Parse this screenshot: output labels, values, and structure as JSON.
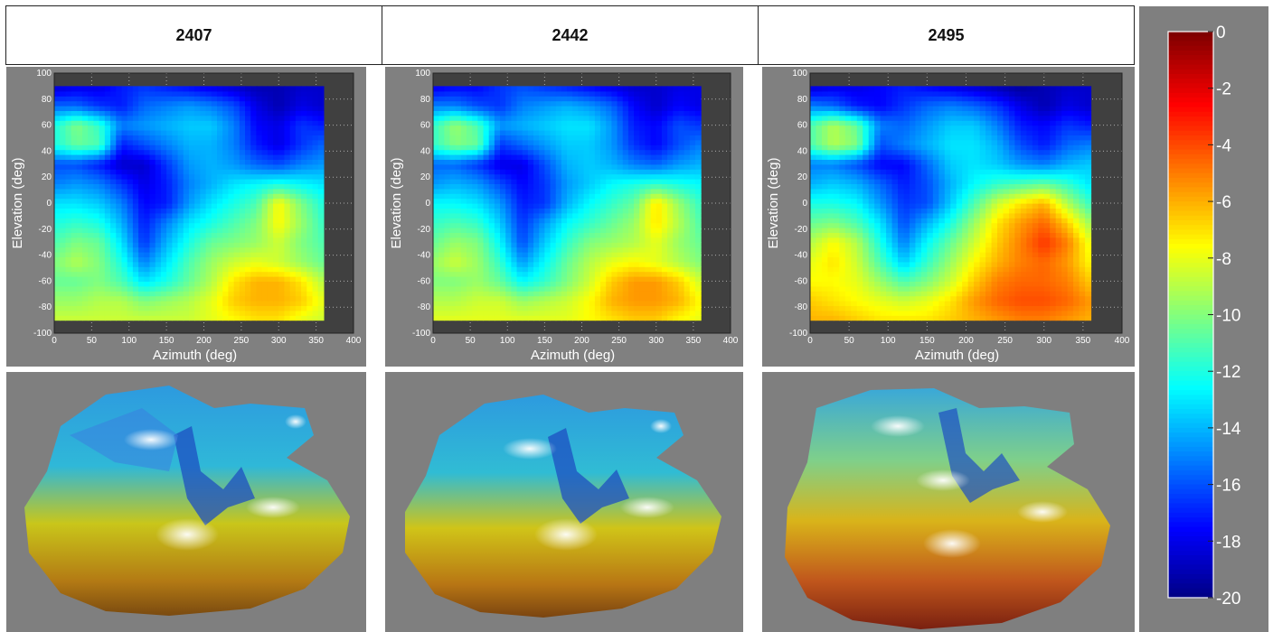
{
  "panels": [
    {
      "label": "2407"
    },
    {
      "label": "2442"
    },
    {
      "label": "2495"
    }
  ],
  "colors": {
    "panel_bg": "#808080",
    "axes_bg": "#404040",
    "scale": [
      "#00008f",
      "#0000ff",
      "#0080ff",
      "#00ffff",
      "#80ff80",
      "#ffff00",
      "#ff8000",
      "#ff0000",
      "#800000"
    ]
  },
  "chart_data": [
    {
      "type": "heatmap",
      "panel": "2407",
      "xlabel": "Azimuth (deg)",
      "ylabel": "Elevation (deg)",
      "xlim": [
        0,
        400
      ],
      "ylim": [
        -100,
        100
      ],
      "x_ticks": [
        0,
        50,
        100,
        150,
        200,
        250,
        300,
        350,
        400
      ],
      "y_ticks": [
        -100,
        -80,
        -60,
        -40,
        -20,
        0,
        20,
        40,
        60,
        80,
        100
      ],
      "x_range": [
        0,
        360
      ],
      "y_range": [
        -90,
        90
      ],
      "grid": true,
      "x": [
        0,
        30,
        60,
        90,
        120,
        150,
        180,
        210,
        240,
        270,
        300,
        330,
        360
      ],
      "y": [
        -90,
        -75,
        -60,
        -45,
        -30,
        -15,
        0,
        15,
        30,
        45,
        60,
        75,
        90
      ],
      "values": [
        [
          -8.5,
          -8.5,
          -8.5,
          -8.5,
          -8.5,
          -8.5,
          -8.5,
          -8.0,
          -7.5,
          -7.0,
          -7.0,
          -8.0,
          -8.5
        ],
        [
          -9.5,
          -9.5,
          -9.0,
          -9.0,
          -10.0,
          -9.5,
          -9.0,
          -8.0,
          -6.5,
          -6.0,
          -6.0,
          -6.5,
          -8.0
        ],
        [
          -10.5,
          -10.5,
          -10.0,
          -11.0,
          -13.0,
          -12.0,
          -10.5,
          -9.0,
          -7.0,
          -6.0,
          -6.0,
          -7.0,
          -9.0
        ],
        [
          -10.0,
          -9.0,
          -10.0,
          -12.0,
          -15.0,
          -13.0,
          -11.0,
          -9.5,
          -8.5,
          -8.0,
          -8.5,
          -9.5,
          -10.5
        ],
        [
          -11.0,
          -10.0,
          -10.5,
          -13.0,
          -16.5,
          -14.0,
          -12.0,
          -10.5,
          -10.0,
          -9.5,
          -8.5,
          -10.0,
          -11.0
        ],
        [
          -12.0,
          -11.5,
          -12.0,
          -14.0,
          -17.0,
          -15.0,
          -13.0,
          -12.0,
          -11.0,
          -10.0,
          -7.5,
          -9.5,
          -11.5
        ],
        [
          -13.0,
          -13.0,
          -13.5,
          -15.0,
          -17.5,
          -17.0,
          -14.5,
          -13.0,
          -12.0,
          -11.0,
          -7.5,
          -10.0,
          -12.0
        ],
        [
          -15.0,
          -14.5,
          -15.0,
          -16.5,
          -18.0,
          -17.0,
          -15.0,
          -14.0,
          -13.0,
          -12.5,
          -12.0,
          -12.5,
          -13.0
        ],
        [
          -16.0,
          -16.0,
          -17.0,
          -18.5,
          -18.5,
          -16.5,
          -14.5,
          -14.0,
          -14.5,
          -15.5,
          -16.0,
          -15.0,
          -14.5
        ],
        [
          -12.0,
          -10.5,
          -11.0,
          -17.0,
          -16.0,
          -15.0,
          -14.0,
          -14.0,
          -15.0,
          -17.0,
          -18.0,
          -16.5,
          -15.5
        ],
        [
          -12.0,
          -10.0,
          -11.5,
          -15.0,
          -14.5,
          -14.0,
          -13.5,
          -13.5,
          -15.0,
          -17.5,
          -18.0,
          -16.5,
          -17.0
        ],
        [
          -15.5,
          -15.5,
          -16.5,
          -17.0,
          -15.5,
          -15.0,
          -14.5,
          -15.0,
          -16.0,
          -18.0,
          -19.0,
          -18.0,
          -18.5
        ],
        [
          -18.5,
          -18.0,
          -18.0,
          -17.0,
          -16.5,
          -17.0,
          -17.5,
          -18.0,
          -18.5,
          -19.0,
          -19.0,
          -18.5,
          -18.5
        ]
      ]
    },
    {
      "type": "heatmap",
      "panel": "2442",
      "xlabel": "Azimuth (deg)",
      "ylabel": "Elevation (deg)",
      "xlim": [
        0,
        400
      ],
      "ylim": [
        -100,
        100
      ],
      "x_ticks": [
        0,
        50,
        100,
        150,
        200,
        250,
        300,
        350,
        400
      ],
      "y_ticks": [
        -100,
        -80,
        -60,
        -40,
        -20,
        0,
        20,
        40,
        60,
        80,
        100
      ],
      "x_range": [
        0,
        360
      ],
      "y_range": [
        -90,
        90
      ],
      "grid": true,
      "x": [
        0,
        30,
        60,
        90,
        120,
        150,
        180,
        210,
        240,
        270,
        300,
        330,
        360
      ],
      "y": [
        -90,
        -75,
        -60,
        -45,
        -30,
        -15,
        0,
        15,
        30,
        45,
        60,
        75,
        90
      ],
      "values": [
        [
          -8.0,
          -8.0,
          -8.0,
          -8.0,
          -8.0,
          -8.0,
          -8.0,
          -7.5,
          -7.0,
          -6.5,
          -6.5,
          -7.5,
          -8.0
        ],
        [
          -9.0,
          -9.0,
          -8.5,
          -8.5,
          -9.5,
          -9.0,
          -8.5,
          -7.5,
          -6.0,
          -5.5,
          -5.5,
          -6.0,
          -7.5
        ],
        [
          -10.0,
          -10.0,
          -9.5,
          -10.5,
          -12.5,
          -11.5,
          -10.0,
          -8.5,
          -6.5,
          -5.5,
          -5.5,
          -6.5,
          -8.5
        ],
        [
          -9.5,
          -8.5,
          -9.5,
          -11.5,
          -14.5,
          -12.5,
          -10.5,
          -9.0,
          -8.0,
          -7.5,
          -8.0,
          -9.0,
          -10.0
        ],
        [
          -10.5,
          -9.5,
          -10.0,
          -12.5,
          -16.0,
          -13.5,
          -11.5,
          -10.0,
          -9.5,
          -9.0,
          -8.0,
          -9.5,
          -10.5
        ],
        [
          -11.5,
          -11.0,
          -11.5,
          -13.5,
          -16.5,
          -14.5,
          -12.5,
          -11.5,
          -10.5,
          -9.5,
          -7.0,
          -9.0,
          -11.0
        ],
        [
          -12.5,
          -12.5,
          -13.0,
          -14.5,
          -17.0,
          -16.5,
          -14.0,
          -12.5,
          -11.5,
          -10.5,
          -7.0,
          -9.5,
          -11.5
        ],
        [
          -14.5,
          -14.0,
          -14.5,
          -16.0,
          -17.5,
          -16.5,
          -14.5,
          -13.5,
          -12.5,
          -12.0,
          -11.5,
          -12.0,
          -12.5
        ],
        [
          -15.5,
          -15.5,
          -16.5,
          -18.0,
          -18.0,
          -16.0,
          -14.0,
          -13.5,
          -14.0,
          -15.0,
          -15.5,
          -14.5,
          -14.0
        ],
        [
          -11.5,
          -10.0,
          -10.5,
          -16.5,
          -15.5,
          -14.5,
          -13.5,
          -13.5,
          -14.5,
          -16.5,
          -17.5,
          -16.0,
          -15.0
        ],
        [
          -11.5,
          -9.5,
          -11.0,
          -14.5,
          -14.0,
          -13.5,
          -13.0,
          -13.0,
          -14.5,
          -17.0,
          -17.5,
          -16.0,
          -16.5
        ],
        [
          -15.0,
          -15.0,
          -16.0,
          -16.5,
          -15.0,
          -14.5,
          -14.0,
          -14.5,
          -15.5,
          -17.5,
          -18.5,
          -17.5,
          -18.0
        ],
        [
          -18.0,
          -17.5,
          -17.5,
          -16.5,
          -16.0,
          -16.5,
          -17.0,
          -17.5,
          -18.0,
          -18.5,
          -18.5,
          -18.0,
          -18.0
        ]
      ]
    },
    {
      "type": "heatmap",
      "panel": "2495",
      "xlabel": "Azimuth (deg)",
      "ylabel": "Elevation (deg)",
      "xlim": [
        0,
        400
      ],
      "ylim": [
        -100,
        100
      ],
      "x_ticks": [
        0,
        50,
        100,
        150,
        200,
        250,
        300,
        350,
        400
      ],
      "y_ticks": [
        -100,
        -80,
        -60,
        -40,
        -20,
        0,
        20,
        40,
        60,
        80,
        100
      ],
      "x_range": [
        0,
        360
      ],
      "y_range": [
        -90,
        90
      ],
      "grid": true,
      "x": [
        0,
        30,
        60,
        90,
        120,
        150,
        180,
        210,
        240,
        270,
        300,
        330,
        360
      ],
      "y": [
        -90,
        -75,
        -60,
        -45,
        -30,
        -15,
        0,
        15,
        30,
        45,
        60,
        75,
        90
      ],
      "values": [
        [
          -6.0,
          -6.0,
          -6.5,
          -7.0,
          -7.0,
          -7.0,
          -6.5,
          -6.0,
          -5.5,
          -5.0,
          -5.0,
          -5.5,
          -6.0
        ],
        [
          -6.5,
          -7.0,
          -7.5,
          -8.0,
          -8.5,
          -8.0,
          -7.0,
          -5.5,
          -4.5,
          -4.0,
          -4.0,
          -4.5,
          -5.5
        ],
        [
          -7.5,
          -7.5,
          -8.0,
          -9.5,
          -11.0,
          -10.0,
          -8.5,
          -6.5,
          -5.0,
          -4.5,
          -4.5,
          -5.0,
          -6.5
        ],
        [
          -8.0,
          -7.0,
          -8.5,
          -11.0,
          -13.5,
          -11.5,
          -9.5,
          -7.5,
          -6.0,
          -5.0,
          -4.5,
          -5.5,
          -7.5
        ],
        [
          -9.0,
          -7.5,
          -9.0,
          -12.0,
          -15.0,
          -12.5,
          -10.5,
          -8.5,
          -6.5,
          -5.0,
          -3.5,
          -5.0,
          -8.0
        ],
        [
          -10.5,
          -10.0,
          -11.0,
          -13.0,
          -16.0,
          -14.0,
          -12.0,
          -9.5,
          -7.0,
          -5.5,
          -4.5,
          -6.5,
          -9.5
        ],
        [
          -12.0,
          -12.0,
          -12.5,
          -14.5,
          -16.5,
          -16.0,
          -13.5,
          -11.0,
          -8.5,
          -7.0,
          -6.0,
          -9.0,
          -11.5
        ],
        [
          -14.0,
          -13.5,
          -14.0,
          -15.5,
          -17.0,
          -16.0,
          -14.0,
          -12.5,
          -11.5,
          -11.0,
          -10.5,
          -11.5,
          -13.0
        ],
        [
          -15.0,
          -15.0,
          -16.0,
          -17.5,
          -17.5,
          -15.5,
          -13.5,
          -13.0,
          -13.5,
          -14.5,
          -15.0,
          -14.0,
          -13.5
        ],
        [
          -11.0,
          -9.0,
          -10.0,
          -16.0,
          -15.0,
          -14.0,
          -13.0,
          -13.0,
          -14.0,
          -16.0,
          -17.0,
          -15.5,
          -15.0
        ],
        [
          -11.0,
          -9.0,
          -10.5,
          -15.0,
          -15.5,
          -14.5,
          -13.5,
          -13.5,
          -15.0,
          -17.0,
          -17.5,
          -16.5,
          -17.0
        ],
        [
          -15.0,
          -15.5,
          -17.0,
          -17.5,
          -16.5,
          -15.5,
          -15.0,
          -15.5,
          -16.5,
          -18.0,
          -19.0,
          -18.0,
          -18.5
        ],
        [
          -18.5,
          -18.0,
          -18.0,
          -17.5,
          -17.0,
          -17.5,
          -18.0,
          -18.5,
          -19.0,
          -19.5,
          -19.0,
          -18.5,
          -18.5
        ]
      ]
    },
    {
      "type": "colorbar",
      "clim": [
        -20,
        0
      ],
      "ticks": [
        0,
        -2,
        -4,
        -6,
        -8,
        -10,
        -12,
        -14,
        -16,
        -18,
        -20
      ]
    }
  ]
}
